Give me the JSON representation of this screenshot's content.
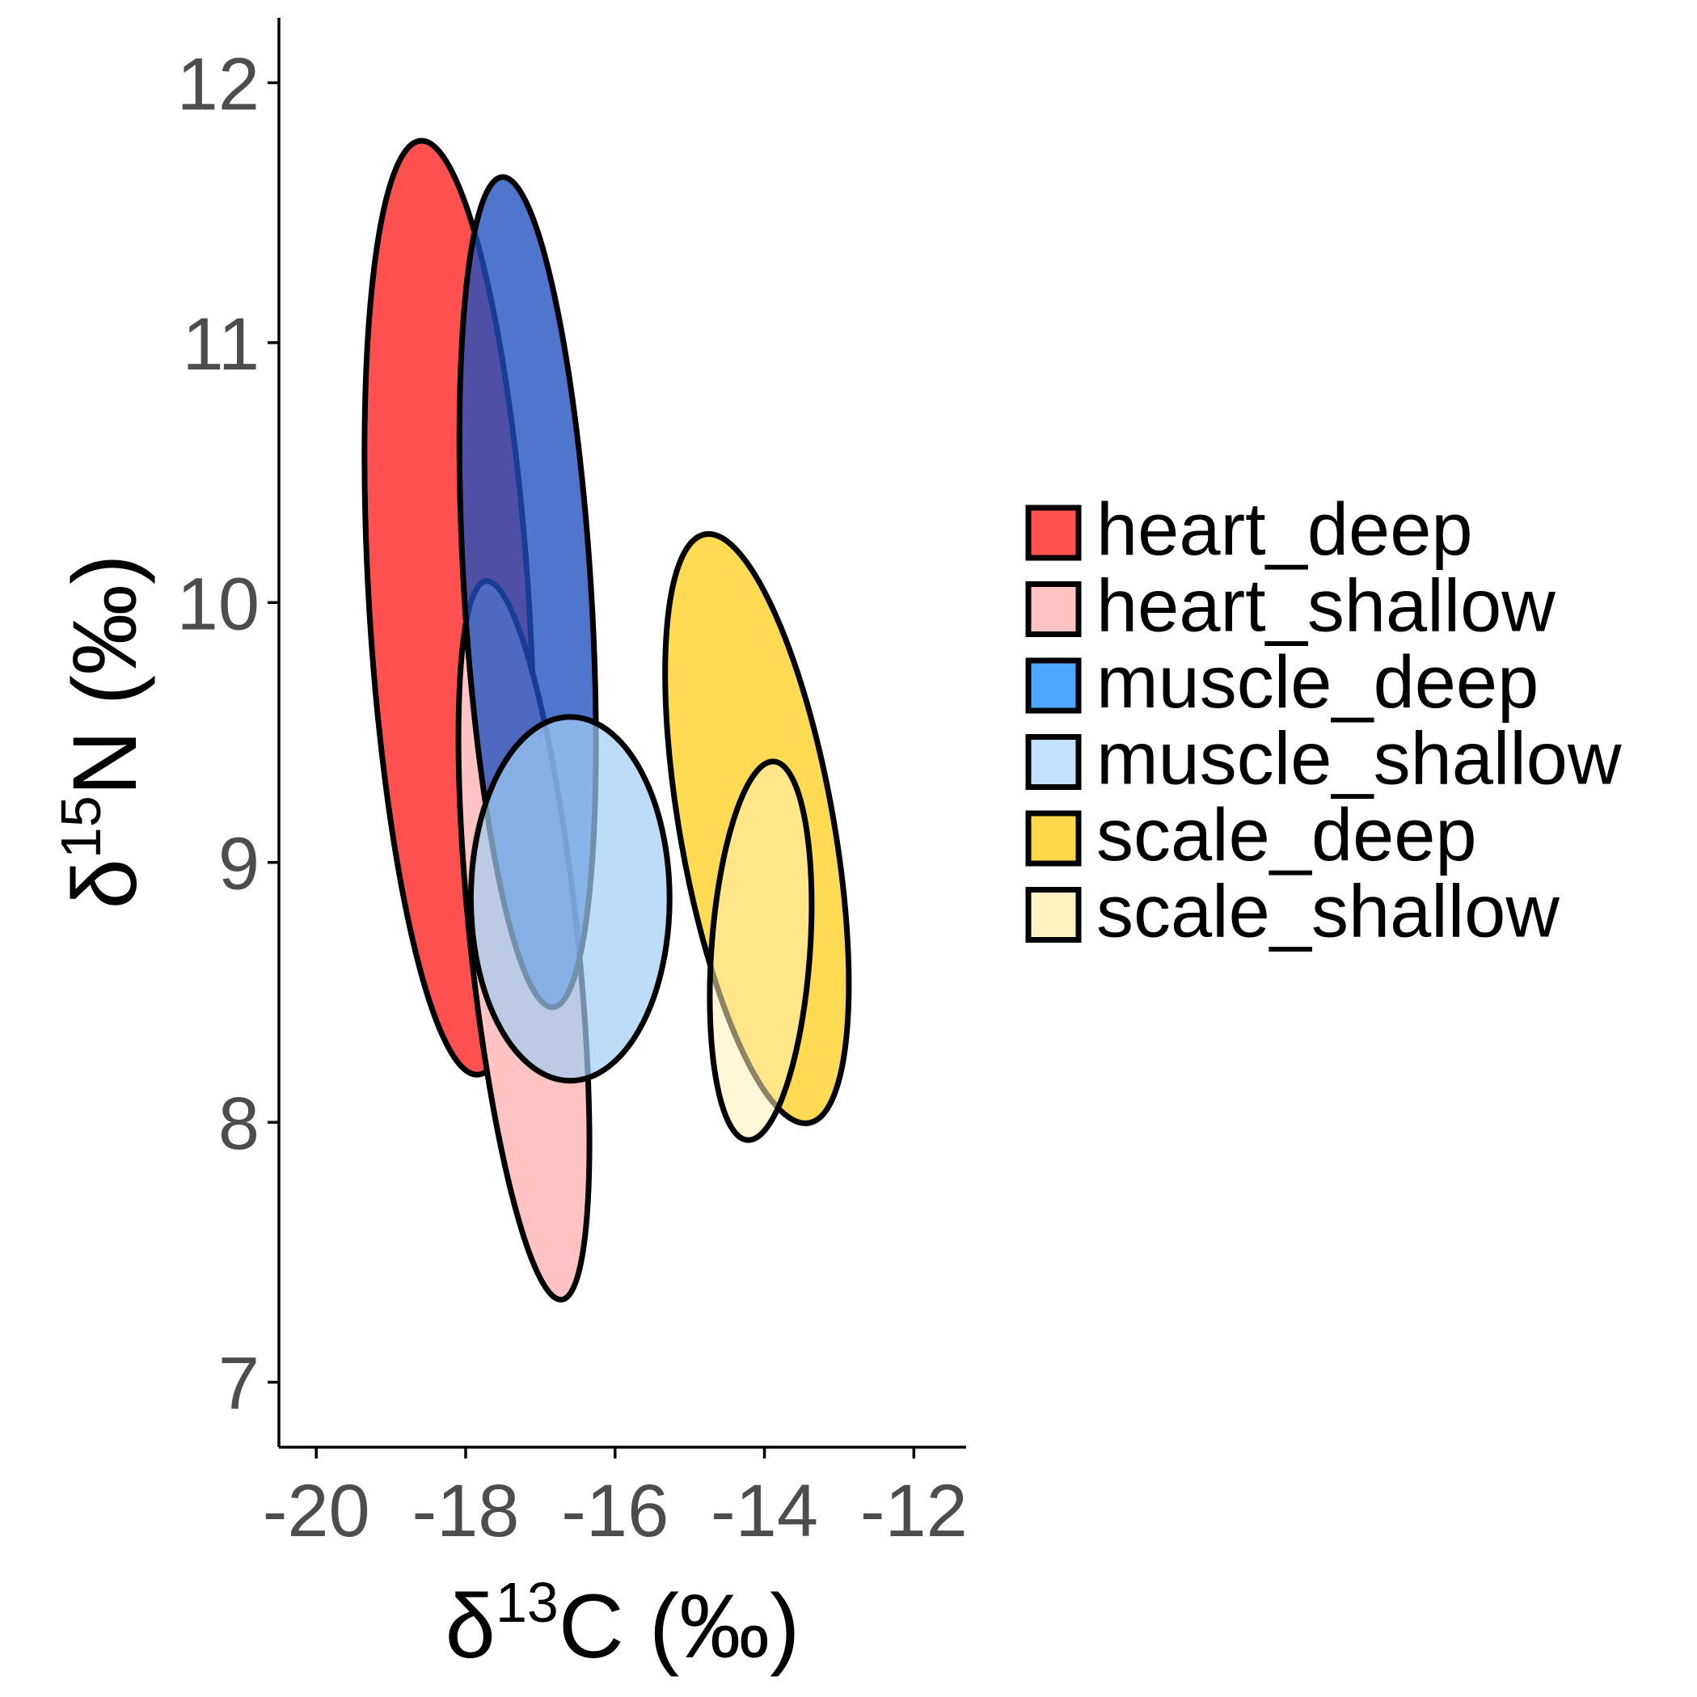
{
  "chart_data": {
    "type": "scatter",
    "subtype": "ellipses",
    "xlabel": {
      "prefix": "δ",
      "sup": "13",
      "rest": "C (‰)"
    },
    "ylabel": {
      "prefix": "δ",
      "sup": "15",
      "rest": "N (‰)"
    },
    "xlim": [
      -20.5,
      -11.3
    ],
    "ylim": [
      6.75,
      12.25
    ],
    "xticks": [
      -20,
      -18,
      -16,
      -14,
      -12
    ],
    "yticks": [
      7,
      8,
      9,
      10,
      11,
      12
    ],
    "grid": false,
    "legend_position": "right",
    "series": [
      {
        "name": "heart_deep",
        "color": "#ff5050",
        "alpha": 1.0,
        "cx": -18.22,
        "cy": 9.98,
        "rx": 1.07,
        "ry": 1.8,
        "angle": -3.5
      },
      {
        "name": "heart_shallow",
        "color": "#ffc3c3",
        "alpha": 1.0,
        "cx": -17.22,
        "cy": 8.7,
        "rx": 0.72,
        "ry": 1.39,
        "angle": -6.0
      },
      {
        "name": "muscle_deep",
        "color": "#1e50be",
        "alpha": 0.78,
        "cx": -17.17,
        "cy": 10.04,
        "rx": 0.85,
        "ry": 1.6,
        "angle": -3.5
      },
      {
        "name": "muscle_shallow",
        "color": "#a0cdf5",
        "alpha": 0.7,
        "cx": -16.6,
        "cy": 8.86,
        "rx": 1.33,
        "ry": 0.7,
        "angle": 0
      },
      {
        "name": "scale_deep",
        "color": "#ffd84a",
        "alpha": 0.95,
        "cx": -14.1,
        "cy": 9.13,
        "rx": 1.03,
        "ry": 1.15,
        "angle": -10.0
      },
      {
        "name": "scale_shallow",
        "color": "#fff0b4",
        "alpha": 0.55,
        "cx": -14.05,
        "cy": 8.66,
        "rx": 0.66,
        "ry": 0.73,
        "angle": 4.0
      }
    ],
    "legend_fills": [
      "#ff5050",
      "#ffc3c3",
      "#4da6ff",
      "#c2e0ff",
      "#ffd84a",
      "#fff3c2"
    ]
  }
}
